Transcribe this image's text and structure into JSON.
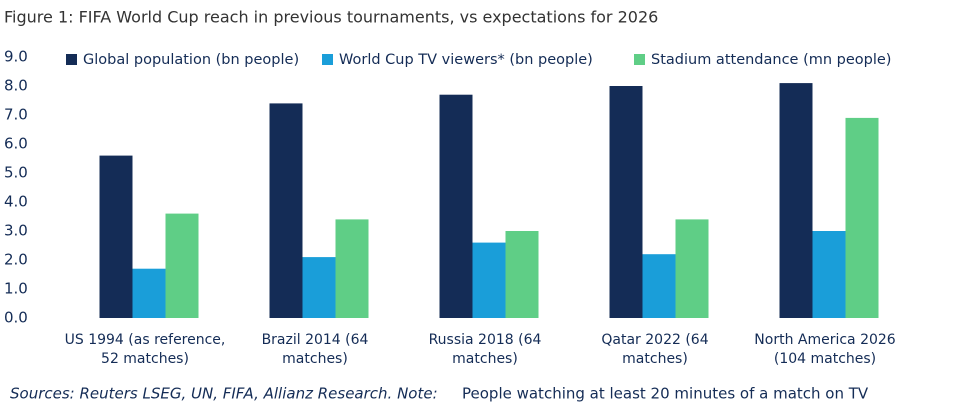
{
  "chart_data": {
    "type": "bar",
    "title": "Figure 1: FIFA World Cup reach in previous tournaments, vs expectations for 2026",
    "categories": [
      "US 1994 (as reference, 52 matches)",
      "Brazil 2014 (64 matches)",
      "Russia 2018 (64 matches)",
      "Qatar 2022 (64 matches)",
      "North America 2026 (104 matches)"
    ],
    "series": [
      {
        "name": "Global population (bn people)",
        "color": "#142c56",
        "values": [
          5.6,
          7.4,
          7.7,
          8.0,
          8.1
        ]
      },
      {
        "name": "World Cup TV viewers* (bn people)",
        "color": "#1a9ed9",
        "values": [
          1.7,
          2.1,
          2.6,
          2.2,
          3.0
        ]
      },
      {
        "name": "Stadium attendance (mn people)",
        "color": "#5fce86",
        "values": [
          3.6,
          3.4,
          3.0,
          3.4,
          6.9
        ]
      }
    ],
    "ylim": [
      0,
      9
    ],
    "yticks": [
      {
        "value": 0,
        "label": "0.0"
      },
      {
        "value": 1,
        "label": "1.0"
      },
      {
        "value": 2,
        "label": "2.0"
      },
      {
        "value": 3,
        "label": "3.0"
      },
      {
        "value": 4,
        "label": "4.0"
      },
      {
        "value": 5,
        "label": "5.0"
      },
      {
        "value": 6,
        "label": "6.0"
      },
      {
        "value": 7,
        "label": "7.0"
      },
      {
        "value": 8,
        "label": "8.0"
      },
      {
        "value": 9,
        "label": "9.0"
      }
    ],
    "grid": false,
    "legend": "top",
    "source": "Sources: Reuters LSEG, UN, FIFA, Allianz Research. Note:",
    "note": "People watching at least 20 minutes of a match on TV"
  }
}
